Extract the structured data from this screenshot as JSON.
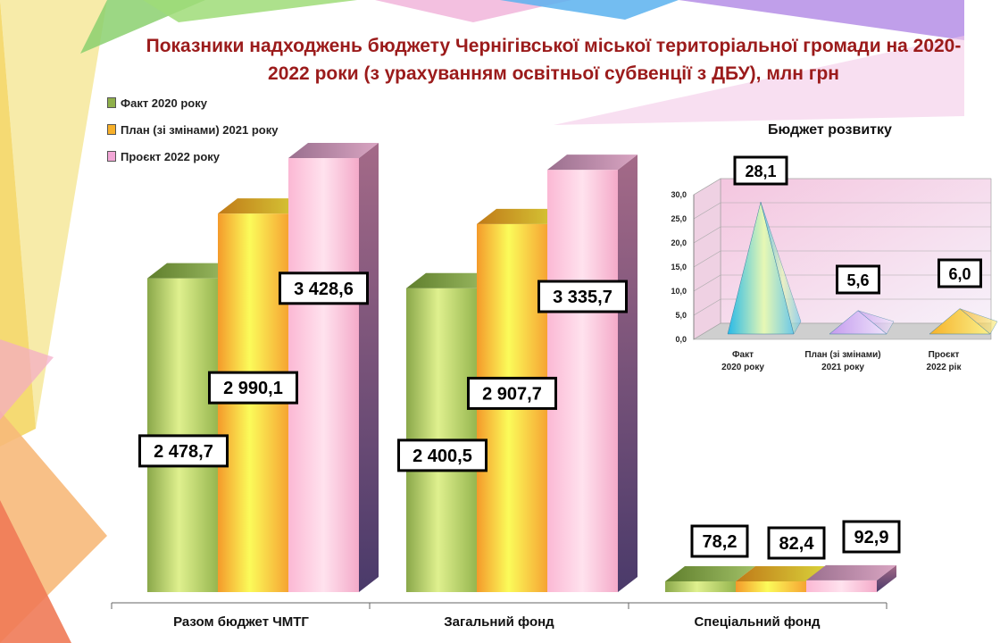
{
  "title": {
    "line1": "Показники надходжень бюджету Чернігівської міської територіальної громади  на 2020-",
    "line2": "2022 роки (з урахуванням освітньої субвенції з ДБУ), млн грн"
  },
  "colors": {
    "fact_2020": "#8fb04a",
    "plan_2021": "#f7b02a",
    "project_2022": "#f2a6d6",
    "title": "#9b1b1b",
    "pyramid_fact": "#4fc3e8",
    "pyramid_plan": "#c8a0ee",
    "pyramid_project": "#f7c640"
  },
  "chart_data": [
    {
      "type": "bar",
      "categories": [
        "Разом бюджет ЧМТГ",
        "Загальний фонд",
        "Спеціальний фонд"
      ],
      "series": [
        {
          "name": "Факт 2020 року",
          "values": [
            2478.7,
            2400.5,
            78.2
          ],
          "labels": [
            "2 478,7",
            "2 400,5",
            "78,2"
          ]
        },
        {
          "name": "План (зі змінами) 2021 року",
          "values": [
            2990.1,
            2907.7,
            82.4
          ],
          "labels": [
            "2 990,1",
            "2 907,7",
            "82,4"
          ]
        },
        {
          "name": "Проєкт 2022 року",
          "values": [
            3428.6,
            3335.7,
            92.9
          ],
          "labels": [
            "3 428,6",
            "3 335,7",
            "92,9"
          ]
        }
      ],
      "legend": "top-left",
      "grid": false,
      "ylim": [
        0,
        3428.6
      ]
    },
    {
      "type": "bar",
      "title": "Бюджет розвитку",
      "categories": [
        [
          "Факт",
          "2020 року"
        ],
        [
          "План (зі змінами)",
          "2021 року"
        ],
        [
          "Проєкт",
          "2022 рік"
        ]
      ],
      "values": [
        28.1,
        5.6,
        6.0
      ],
      "labels": [
        "28,1",
        "5,6",
        "6,0"
      ],
      "yticks": [
        "0,0",
        "5,0",
        "10,0",
        "15,0",
        "20,0",
        "25,0",
        "30,0"
      ],
      "ylim": [
        0,
        30
      ],
      "grid": true
    }
  ]
}
